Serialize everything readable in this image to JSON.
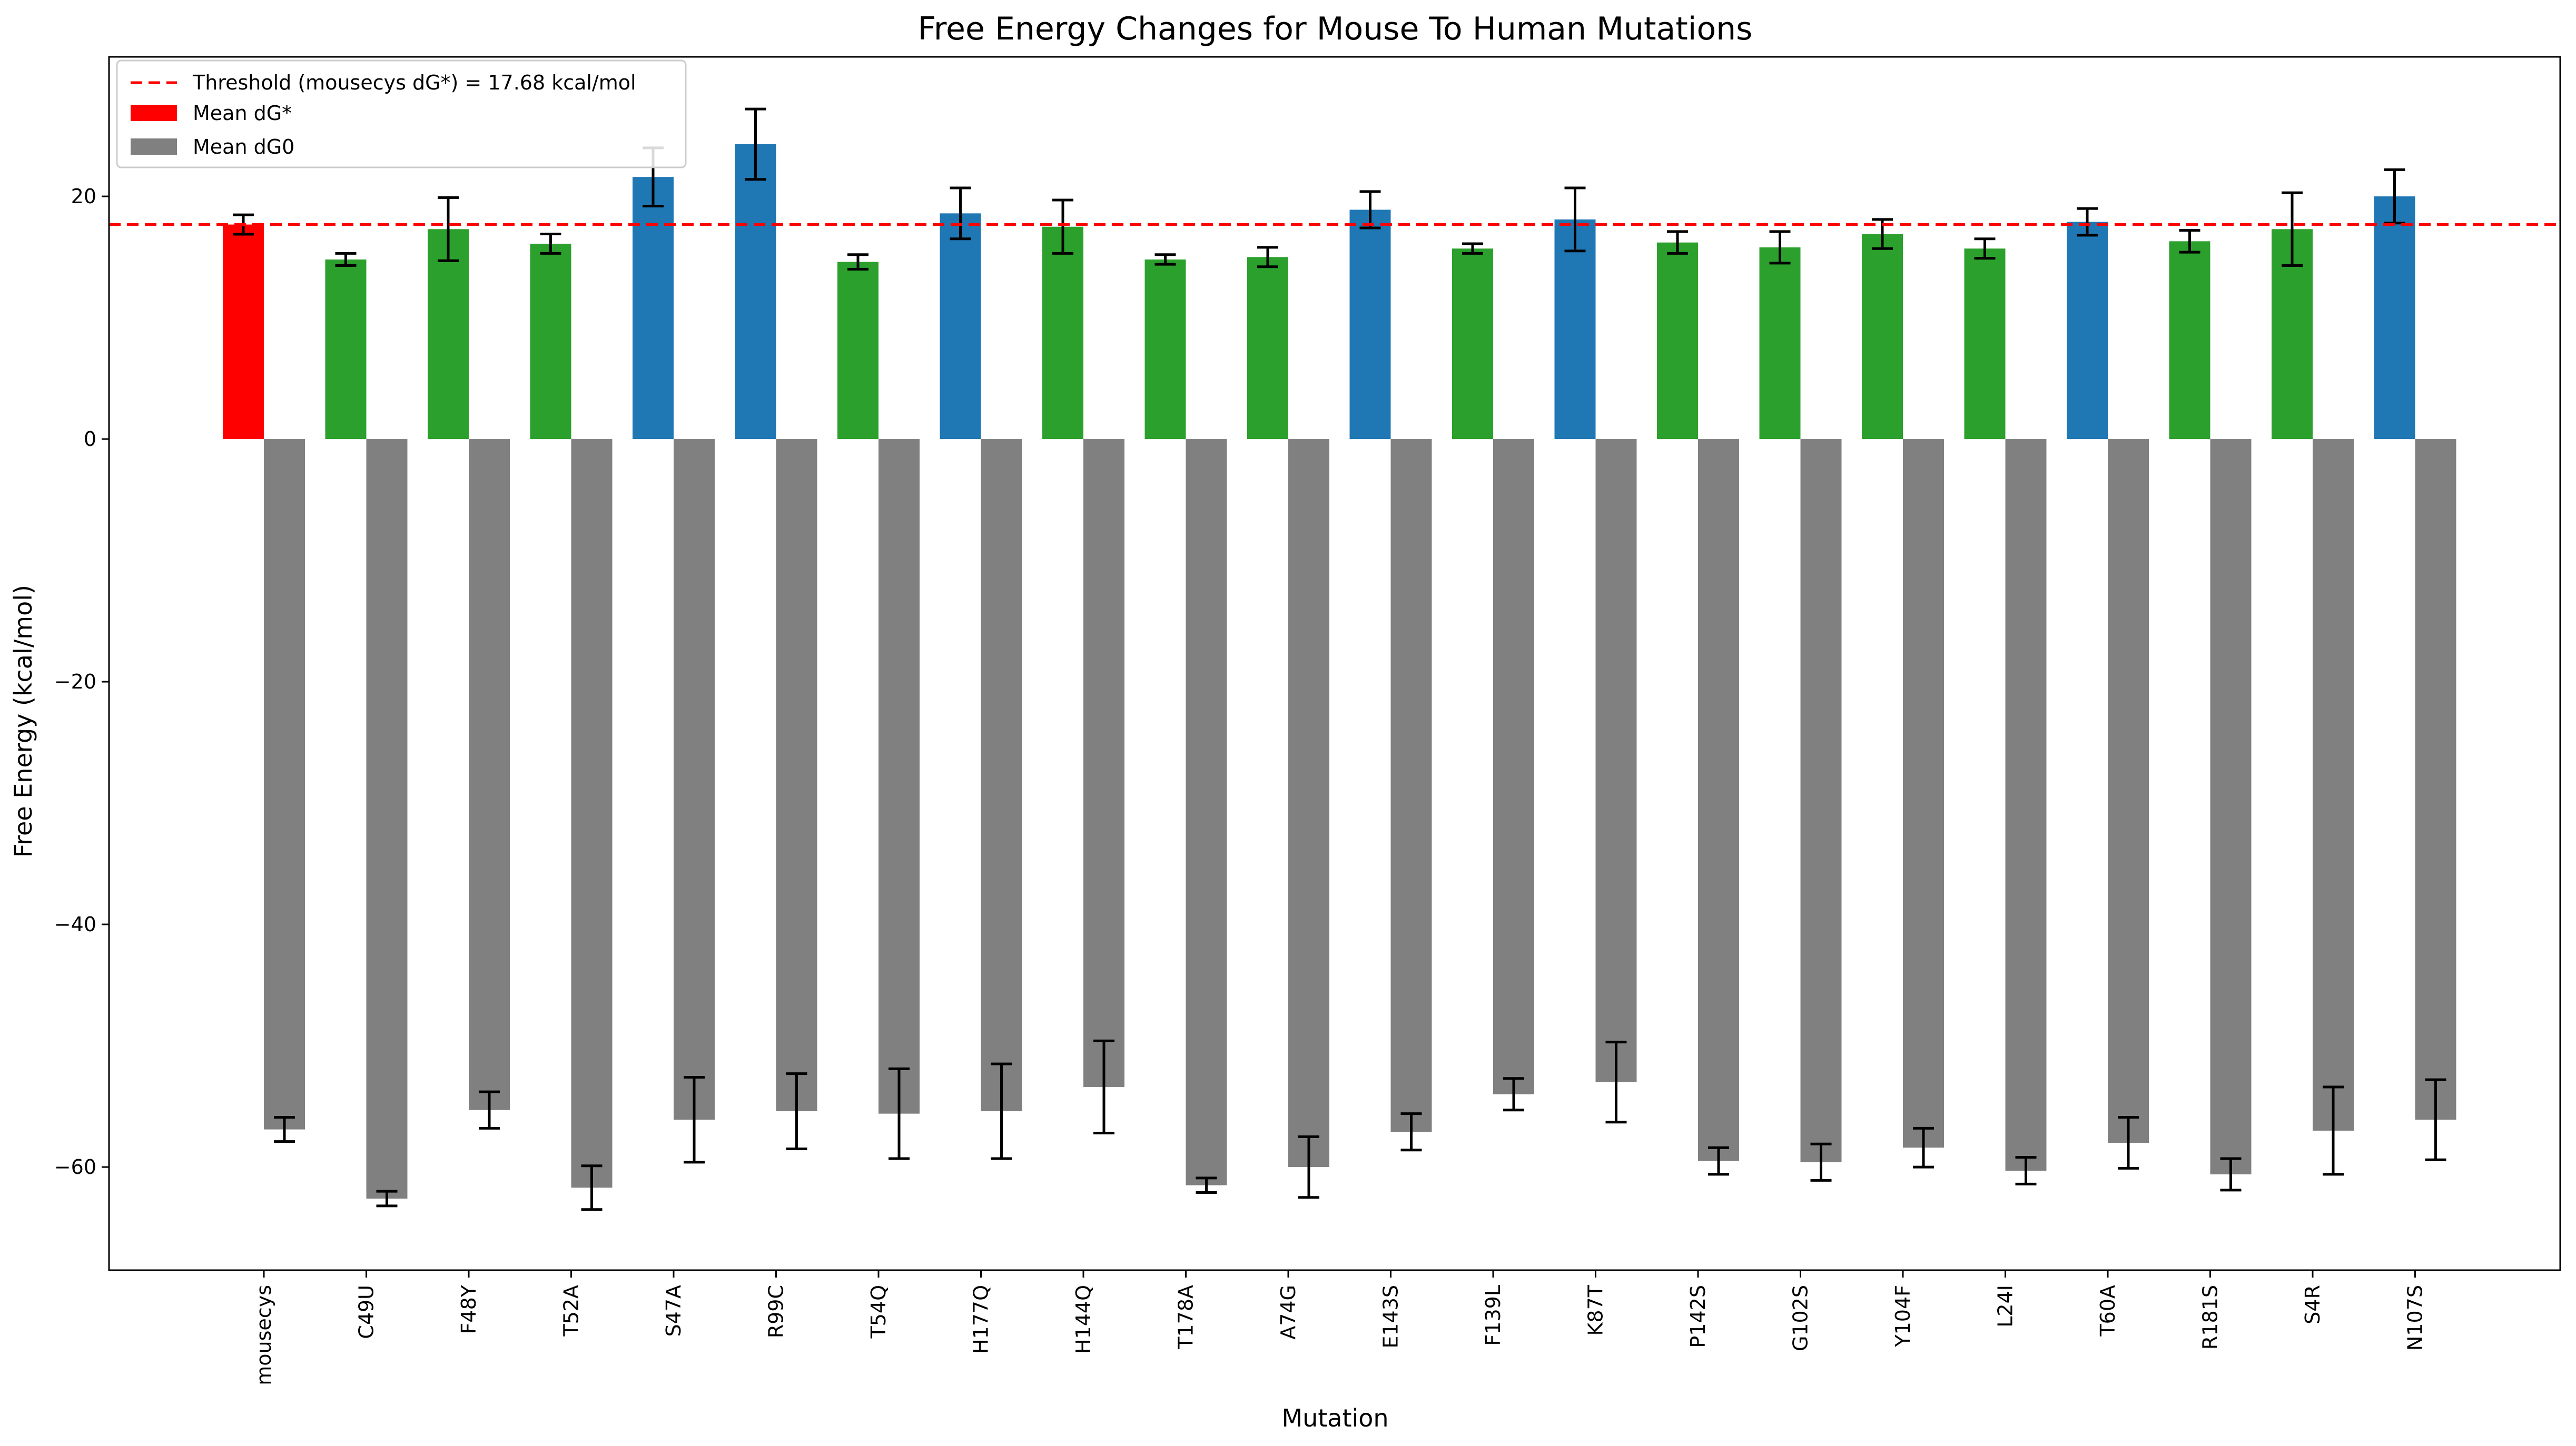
{
  "chart_data": {
    "type": "bar",
    "title": "Free Energy Changes for Mouse To Human Mutations",
    "xlabel": "Mutation",
    "ylabel": "Free Energy (kcal/mol)",
    "ylim": [
      -68.5,
      31.5
    ],
    "yticks": [
      20,
      0,
      -20,
      -40,
      -60
    ],
    "ytick_labels": [
      "20",
      "0",
      "−20",
      "−40",
      "−60"
    ],
    "grid": false,
    "legend_position": "top-left",
    "colors": {
      "reference": "#ff0000",
      "below_threshold": "#2ca02c",
      "above_threshold": "#1f77b4",
      "dg0": "#808080",
      "threshold_line": "#ff0000",
      "error_bar": "#000000"
    },
    "threshold": {
      "value": 17.68,
      "label": "Threshold (mousecys dG*) = 17.68 kcal/mol"
    },
    "categories": [
      "mousecys",
      "C49U",
      "F48Y",
      "T52A",
      "S47A",
      "R99C",
      "T54Q",
      "H177Q",
      "H144Q",
      "T178A",
      "A74G",
      "E143S",
      "F139L",
      "K87T",
      "P142S",
      "G102S",
      "Y104F",
      "L24I",
      "T60A",
      "R181S",
      "S4R",
      "N107S"
    ],
    "series": [
      {
        "name": "Mean dG*",
        "values": [
          17.68,
          14.8,
          17.3,
          16.1,
          21.6,
          24.3,
          14.6,
          18.6,
          17.5,
          14.8,
          15.0,
          18.9,
          15.7,
          18.1,
          16.2,
          15.8,
          16.9,
          15.7,
          17.9,
          16.3,
          17.3,
          20.0
        ],
        "errors": [
          0.8,
          0.5,
          2.6,
          0.8,
          2.4,
          2.9,
          0.6,
          2.1,
          2.2,
          0.4,
          0.8,
          1.5,
          0.4,
          2.6,
          0.9,
          1.3,
          1.2,
          0.8,
          1.1,
          0.9,
          3.0,
          2.2
        ]
      },
      {
        "name": "Mean dG0",
        "values": [
          -56.9,
          -62.6,
          -55.3,
          -61.7,
          -56.1,
          -55.4,
          -55.6,
          -55.4,
          -53.4,
          -61.5,
          -60.0,
          -57.1,
          -54.0,
          -53.0,
          -59.5,
          -59.6,
          -58.4,
          -60.3,
          -58.0,
          -60.6,
          -57.0,
          -56.1
        ],
        "errors": [
          1.0,
          0.6,
          1.5,
          1.8,
          3.5,
          3.1,
          3.7,
          3.9,
          3.8,
          0.6,
          2.5,
          1.5,
          1.3,
          3.3,
          1.1,
          1.5,
          1.6,
          1.1,
          2.1,
          1.3,
          3.6,
          3.3
        ]
      }
    ]
  }
}
